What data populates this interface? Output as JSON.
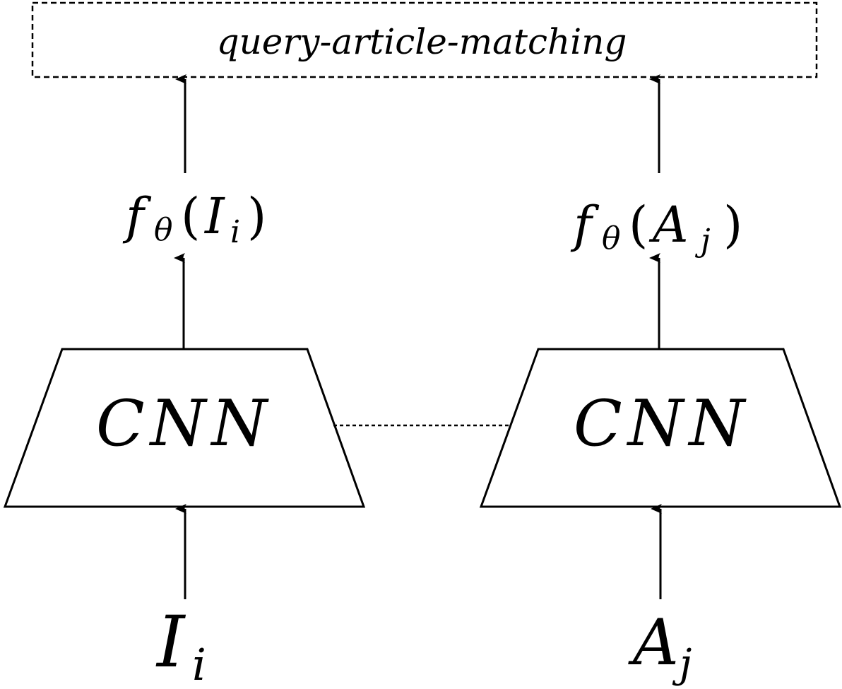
{
  "top_box": {
    "label": "query-article-matching"
  },
  "left_branch": {
    "input_main": "I",
    "input_sub": "i",
    "network_label": "CNN",
    "embedding_f": "f",
    "embedding_theta": "θ",
    "embedding_open": "(",
    "embedding_arg_main": "I",
    "embedding_arg_sub": "i",
    "embedding_close": ")"
  },
  "right_branch": {
    "input_main": "A",
    "input_sub": "j",
    "network_label": "CNN",
    "embedding_f": "f",
    "embedding_theta": "θ",
    "embedding_open": "(",
    "embedding_arg_main": "A",
    "embedding_arg_sub": "j",
    "embedding_close": ")"
  },
  "colors": {
    "stroke": "#000000",
    "background": "#ffffff"
  }
}
